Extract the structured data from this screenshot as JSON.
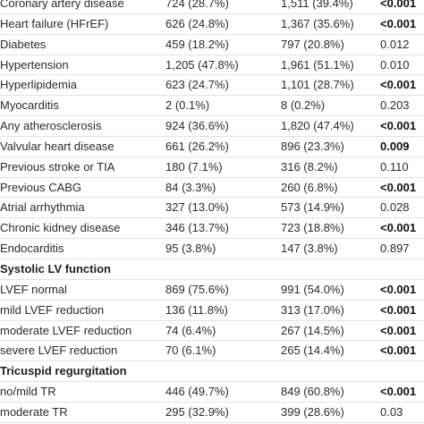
{
  "rows": [
    {
      "type": "data",
      "label": "Coronary artery disease",
      "g1": "724 (28.7%)",
      "g2": "1,511 (39.4%)",
      "p": "<0.001",
      "p_bold": true
    },
    {
      "type": "data",
      "label": "Heart failure (HFrEF)",
      "g1": "626 (24.8%)",
      "g2": "1,367 (35.6%)",
      "p": "<0.001",
      "p_bold": true
    },
    {
      "type": "data",
      "label": "Diabetes",
      "g1": "459 (18.2%)",
      "g2": "797 (20.8%)",
      "p": "0.012",
      "p_bold": false
    },
    {
      "type": "data",
      "label": "Hypertension",
      "g1": "1,205 (47.8%)",
      "g2": "1,961 (51.1%)",
      "p": "0.010",
      "p_bold": false
    },
    {
      "type": "data",
      "label": "Hyperlipidemia",
      "g1": "623 (24.7%)",
      "g2": "1,101 (28.7%)",
      "p": "<0.001",
      "p_bold": true
    },
    {
      "type": "data",
      "label": "Myocarditis",
      "g1": "2 (0.1%)",
      "g2": "8 (0.2%)",
      "p": "0.203",
      "p_bold": false
    },
    {
      "type": "data",
      "label": "Any atherosclerosis",
      "g1": "924 (36.6%)",
      "g2": "1,820 (47.4%)",
      "p": "<0.001",
      "p_bold": true
    },
    {
      "type": "data",
      "label": "Valvular heart disease",
      "g1": "661 (26.2%)",
      "g2": "896 (23.3%)",
      "p": "0.009",
      "p_bold": true
    },
    {
      "type": "data",
      "label": "Previous stroke or TIA",
      "g1": "180 (7.1%)",
      "g2": "316 (8.2%)",
      "p": "0.110",
      "p_bold": false
    },
    {
      "type": "data",
      "label": "Previous CABG",
      "g1": "84 (3.3%)",
      "g2": "260 (6.8%)",
      "p": "<0.001",
      "p_bold": true
    },
    {
      "type": "data",
      "label": "Atrial arrhythmia",
      "g1": "327 (13.0%)",
      "g2": "573 (14.9%)",
      "p": "0.028",
      "p_bold": false
    },
    {
      "type": "data",
      "label": "Chronic kidney disease",
      "g1": "346 (13.7%)",
      "g2": "723 (18.8%)",
      "p": "<0.001",
      "p_bold": true
    },
    {
      "type": "data",
      "label": "Endocarditis",
      "g1": "95 (3.8%)",
      "g2": "147 (3.8%)",
      "p": "0.897",
      "p_bold": false
    },
    {
      "type": "section",
      "label": "Systolic LV function"
    },
    {
      "type": "data",
      "label": "LVEF normal",
      "g1": "869 (75.6%)",
      "g2": "991 (54.0%)",
      "p": "<0.001",
      "p_bold": true
    },
    {
      "type": "data",
      "label": "mild LVEF reduction",
      "g1": "136 (11.8%)",
      "g2": "313 (17.0%)",
      "p": "<0.001",
      "p_bold": true
    },
    {
      "type": "data",
      "label": "moderate LVEF reduction",
      "g1": "74 (6.4%)",
      "g2": "267 (14.5%)",
      "p": "<0.001",
      "p_bold": true
    },
    {
      "type": "data",
      "label": "severe LVEF reduction",
      "g1": "70 (6.1%)",
      "g2": "265 (14.4%)",
      "p": "<0.001",
      "p_bold": true
    },
    {
      "type": "section",
      "label": "Tricuspid regurgitation"
    },
    {
      "type": "data",
      "label": "no/mild TR",
      "g1": "446 (49.7%)",
      "g2": "849 (60.8%)",
      "p": "<0.001",
      "p_bold": true
    },
    {
      "type": "data",
      "label": "moderate TR",
      "g1": "295 (32.9%)",
      "g2": "399 (28.6%)",
      "p": "0.03",
      "p_bold": false
    }
  ]
}
